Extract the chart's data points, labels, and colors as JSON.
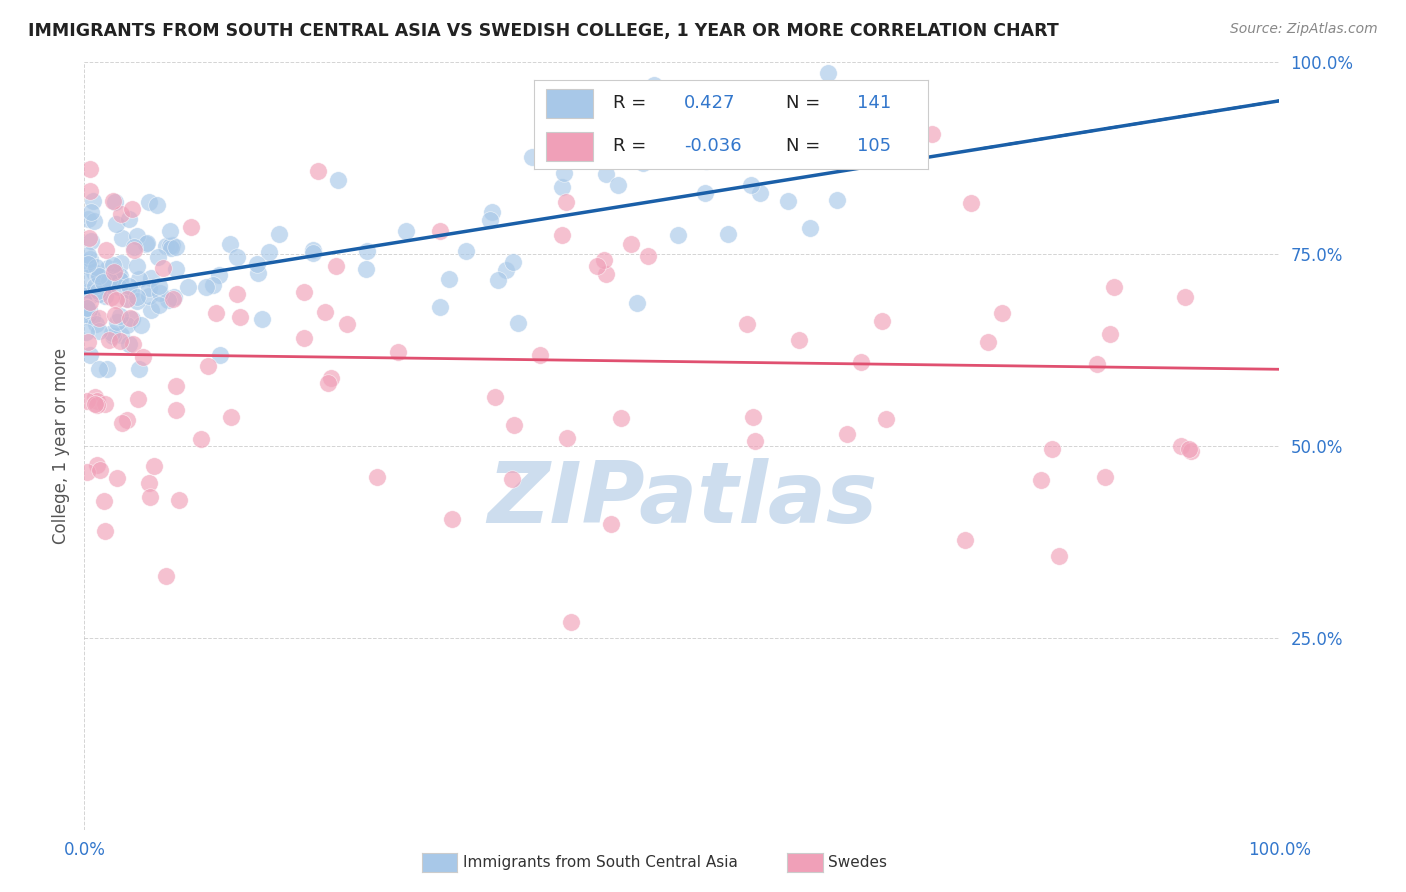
{
  "title": "IMMIGRANTS FROM SOUTH CENTRAL ASIA VS SWEDISH COLLEGE, 1 YEAR OR MORE CORRELATION CHART",
  "source_text": "Source: ZipAtlas.com",
  "ylabel": "College, 1 year or more",
  "watermark": "ZIPatlas",
  "legend_label_blue": "Immigrants from South Central Asia",
  "legend_label_pink": "Swedes",
  "blue_color": "#a8c8e8",
  "pink_color": "#f0a0b8",
  "blue_line_color": "#1a5fa8",
  "pink_line_color": "#e05070",
  "title_color": "#222222",
  "axis_label_color": "#555555",
  "tick_color": "#3377cc",
  "watermark_color": "#c5d8ec",
  "grid_color": "#aaaaaa",
  "background_color": "#ffffff",
  "blue_r": "0.427",
  "blue_n": "141",
  "pink_r": "-0.036",
  "pink_n": "105",
  "ylim": [
    0,
    100
  ],
  "xlim": [
    0,
    100
  ],
  "blue_line_x0": 0,
  "blue_line_y0": 70,
  "blue_line_x1": 100,
  "blue_line_y1": 95,
  "pink_line_x0": 0,
  "pink_line_y0": 62,
  "pink_line_x1": 100,
  "pink_line_y1": 60,
  "figsize": [
    14.06,
    8.92
  ],
  "dpi": 100
}
